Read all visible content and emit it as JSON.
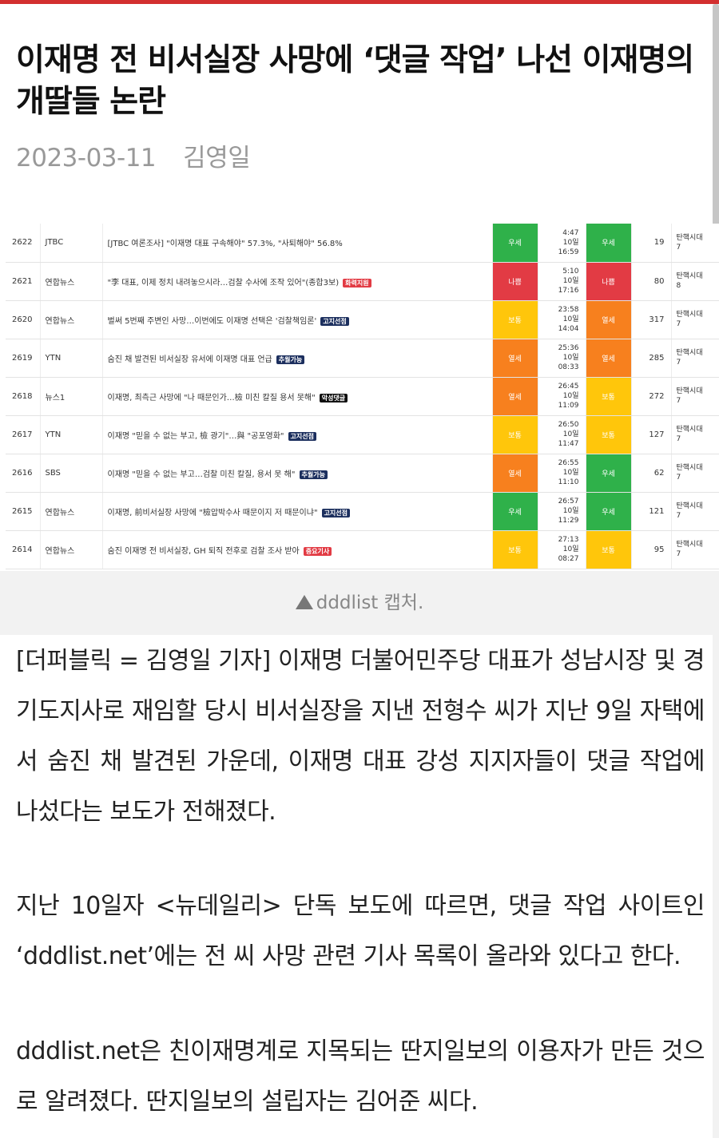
{
  "article": {
    "title": "이재명 전 비서실장 사망에 ‘댓글 작업’ 나선 이재명의 개딸들 논란",
    "date": "2023-03-11",
    "author": "김영일",
    "caption": "dddlist 캡처.",
    "paragraphs": [
      "[더퍼블릭 = 김영일 기자] 이재명 더불어민주당 대표가 성남시장 및 경기도지사로 재임할 당시 비서실장을 지낸 전형수 씨가 지난 9일 자택에서 숨진 채 발견된 가운데, 이재명 대표 강성 지지자들이 댓글 작업에 나섰다는 보도가 전해졌다.",
      "지난 10일자 <뉴데일리> 단독 보도에 따르면, 댓글 작업 사이트인 ‘dddlist.net’에는 전 씨 사망 관련 기사 목록이 올라와 있다고 한다.",
      "dddlist.net은 친이재명계로 지목되는 딴지일보의 이용자가 만든 것으로 알려졌다. 딴지일보의 설립자는 김어준 씨다."
    ]
  },
  "status_colors": {
    "우세": "#2fb14a",
    "나쁨": "#e23b44",
    "열세": "#f7801e",
    "보통": "#ffc60b"
  },
  "list_rows": [
    {
      "no": "2622",
      "source": "JTBC",
      "title": "[JTBC 여론조사] \"이재명 대표 구속해야\" 57.3%, \"사퇴해야\" 56.8%",
      "tag": "",
      "tag_color": "",
      "status1": "우세",
      "time1": "4:47",
      "time2": "10일",
      "time3": "16:59",
      "status2": "우세",
      "count": "19",
      "era1": "탄핵시대",
      "era2": "7"
    },
    {
      "no": "2621",
      "source": "연합뉴스",
      "title": "\"李 대표, 이제 정치 내려놓으시라…검찰 수사에 조작 있어\"(종합3보)",
      "tag": "화력지원",
      "tag_color": "#e23b44",
      "status1": "나쁨",
      "time1": "5:10",
      "time2": "10일",
      "time3": "17:16",
      "status2": "나쁨",
      "count": "80",
      "era1": "탄핵시대",
      "era2": "8"
    },
    {
      "no": "2620",
      "source": "연합뉴스",
      "title": "벌써 5번째 주변인 사망…이번에도 이재명 선택은 '검찰책임론'",
      "tag": "고지선점",
      "tag_color": "#1c2f5e",
      "status1": "보통",
      "time1": "23:58",
      "time2": "10일",
      "time3": "14:04",
      "status2": "열세",
      "count": "317",
      "era1": "탄핵시대",
      "era2": "7"
    },
    {
      "no": "2619",
      "source": "YTN",
      "title": "숨진 채 발견된 비서실장 유서에 이재명 대표 언급",
      "tag": "추월가능",
      "tag_color": "#1c2f5e",
      "status1": "열세",
      "time1": "25:36",
      "time2": "10일",
      "time3": "08:33",
      "status2": "열세",
      "count": "285",
      "era1": "탄핵시대",
      "era2": "7"
    },
    {
      "no": "2618",
      "source": "뉴스1",
      "title": "이재명, 최측근 사망에 \"나 때문인가…檢 미친 칼질 용서 못해\"",
      "tag": "악성댓글",
      "tag_color": "#111111",
      "status1": "열세",
      "time1": "26:45",
      "time2": "10일",
      "time3": "11:09",
      "status2": "보통",
      "count": "272",
      "era1": "탄핵시대",
      "era2": "7"
    },
    {
      "no": "2617",
      "source": "YTN",
      "title": "이재명 \"믿을 수 없는 부고, 檢 광기\"…與 \"공포영화\"",
      "tag": "고지선점",
      "tag_color": "#1c2f5e",
      "status1": "보통",
      "time1": "26:50",
      "time2": "10일",
      "time3": "11:47",
      "status2": "보통",
      "count": "127",
      "era1": "탄핵시대",
      "era2": "7"
    },
    {
      "no": "2616",
      "source": "SBS",
      "title": "이재명 \"믿을 수 없는 부고…검찰 미친 칼질, 용서 못 해\"",
      "tag": "추월가능",
      "tag_color": "#1c2f5e",
      "status1": "열세",
      "time1": "26:55",
      "time2": "10일",
      "time3": "11:10",
      "status2": "우세",
      "count": "62",
      "era1": "탄핵시대",
      "era2": "7"
    },
    {
      "no": "2615",
      "source": "연합뉴스",
      "title": "이재명, 前비서실장 사망에 \"檢압박수사 때문이지 저 때문이냐\"",
      "tag": "고지선점",
      "tag_color": "#1c2f5e",
      "status1": "우세",
      "time1": "26:57",
      "time2": "10일",
      "time3": "11:29",
      "status2": "우세",
      "count": "121",
      "era1": "탄핵시대",
      "era2": "7"
    },
    {
      "no": "2614",
      "source": "연합뉴스",
      "title": "숨진 이재명 전 비서실장, GH 퇴직 전후로 검찰 조사 받아",
      "tag": "중요기사",
      "tag_color": "#e23b44",
      "status1": "보통",
      "time1": "27:13",
      "time2": "10일",
      "time3": "08:27",
      "status2": "보통",
      "count": "95",
      "era1": "탄핵시대",
      "era2": "7"
    }
  ]
}
